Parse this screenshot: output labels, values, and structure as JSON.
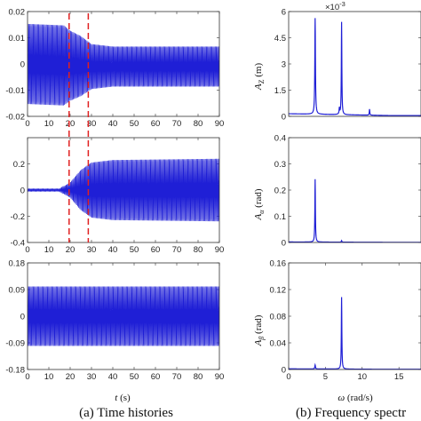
{
  "captions": {
    "left": "(a) Time histories",
    "right": "(b) Frequency spectr"
  },
  "colors": {
    "series": "#1f1fd6",
    "marker_lines": "#e02020",
    "axes": "#333333"
  },
  "chart_data": [
    {
      "type": "line",
      "panel": "time-top",
      "xlim": [
        0,
        90
      ],
      "ylim": [
        -0.02,
        0.02
      ],
      "x_ticks": [
        "0",
        "10",
        "20",
        "30",
        "40",
        "50",
        "60",
        "70",
        "80",
        "90"
      ],
      "y_ticks": [
        "0.02",
        "0.01",
        "0",
        "-0.01",
        "-0.02"
      ],
      "x_tick_values": [
        0,
        10,
        20,
        30,
        40,
        50,
        60,
        70,
        80,
        90
      ],
      "y_tick_values": [
        0.02,
        0.01,
        0,
        -0.01,
        -0.02
      ],
      "series": [
        {
          "oscillation": true,
          "envelope": [
            [
              0,
              0.016
            ],
            [
              17,
              0.016
            ],
            [
              20,
              0.014
            ],
            [
              25,
              0.012
            ],
            [
              30,
              0.009
            ],
            [
              40,
              0.008
            ],
            [
              90,
              0.008
            ]
          ],
          "offset": [
            [
              0,
              0.0
            ],
            [
              30,
              -0.001
            ],
            [
              90,
              -0.001
            ]
          ]
        }
      ],
      "vlines_x": [
        19.5,
        28.5
      ],
      "ylabel": "",
      "xlabel": ""
    },
    {
      "type": "line",
      "panel": "time-mid",
      "xlim": [
        0,
        90
      ],
      "ylim": [
        -0.4,
        0.4
      ],
      "x_ticks": [
        "0",
        "10",
        "20",
        "30",
        "40",
        "50",
        "60",
        "70",
        "80",
        "90"
      ],
      "y_ticks": [
        "0.2",
        "0",
        "-0.2",
        "-0.4"
      ],
      "x_tick_values": [
        0,
        10,
        20,
        30,
        40,
        50,
        60,
        70,
        80,
        90
      ],
      "y_tick_values": [
        0.2,
        0,
        -0.2,
        -0.4
      ],
      "series": [
        {
          "oscillation": true,
          "envelope": [
            [
              0,
              0.01
            ],
            [
              15,
              0.01
            ],
            [
              20,
              0.06
            ],
            [
              25,
              0.16
            ],
            [
              30,
              0.22
            ],
            [
              40,
              0.24
            ],
            [
              90,
              0.25
            ]
          ],
          "offset": [
            [
              0,
              0.0
            ],
            [
              90,
              0.0
            ]
          ]
        }
      ],
      "vlines_x": [
        19.5,
        28.5
      ],
      "ylabel": "",
      "xlabel": ""
    },
    {
      "type": "line",
      "panel": "time-bottom",
      "xlim": [
        0,
        90
      ],
      "ylim": [
        -0.18,
        0.18
      ],
      "x_ticks": [
        "0",
        "10",
        "20",
        "30",
        "40",
        "50",
        "60",
        "70",
        "80",
        "90"
      ],
      "y_ticks": [
        "0.18",
        "0.09",
        "0",
        "-0.09",
        "-0.18"
      ],
      "x_tick_values": [
        0,
        10,
        20,
        30,
        40,
        50,
        60,
        70,
        80,
        90
      ],
      "y_tick_values": [
        0.18,
        0.09,
        0,
        -0.09,
        -0.18
      ],
      "series": [
        {
          "oscillation": true,
          "envelope": [
            [
              0,
              0.105
            ],
            [
              90,
              0.105
            ]
          ],
          "offset": [
            [
              0,
              0.0
            ],
            [
              90,
              0.0
            ]
          ]
        }
      ],
      "xlabel": "t (s)"
    },
    {
      "type": "line",
      "panel": "freq-top",
      "xlim": [
        0,
        18
      ],
      "ylim": [
        0,
        6
      ],
      "x_ticks": [],
      "y_ticks": [
        "0",
        "1.5",
        "3",
        "4.5",
        "6"
      ],
      "y_tick_values": [
        0,
        1.5,
        3,
        4.5,
        6
      ],
      "y_exponent": "×10-3",
      "ylabel": "AZ (m)",
      "peaks": [
        {
          "x": 3.6,
          "y": 5.5,
          "w": 0.12
        },
        {
          "x": 7.2,
          "y": 5.3,
          "w": 0.1
        },
        {
          "x": 6.9,
          "y": 0.35,
          "w": 0.12
        },
        {
          "x": 11.0,
          "y": 0.35,
          "w": 0.1
        }
      ],
      "baseline": 0.15
    },
    {
      "type": "line",
      "panel": "freq-mid",
      "xlim": [
        0,
        18
      ],
      "ylim": [
        0,
        0.4
      ],
      "x_ticks": [],
      "y_ticks": [
        "0",
        "0.1",
        "0.2",
        "0.3",
        "0.4"
      ],
      "y_tick_values": [
        0,
        0.1,
        0.2,
        0.3,
        0.4
      ],
      "ylabel": "Aα (rad)",
      "peaks": [
        {
          "x": 3.6,
          "y": 0.24,
          "w": 0.1
        },
        {
          "x": 7.2,
          "y": 0.006,
          "w": 0.1
        }
      ],
      "baseline": 0.002
    },
    {
      "type": "line",
      "panel": "freq-bottom",
      "xlim": [
        0,
        18
      ],
      "ylim": [
        0,
        0.16
      ],
      "x_ticks": [
        "0",
        "5",
        "10",
        "15"
      ],
      "x_tick_values": [
        0,
        5,
        10,
        15
      ],
      "y_ticks": [
        "0",
        "0.04",
        "0.08",
        "0.12",
        "0.16"
      ],
      "y_tick_values": [
        0,
        0.04,
        0.08,
        0.12,
        0.16
      ],
      "ylabel": "Aβ (rad)",
      "xlabel": "ω (rad/s)",
      "peaks": [
        {
          "x": 7.2,
          "y": 0.108,
          "w": 0.1
        },
        {
          "x": 3.6,
          "y": 0.006,
          "w": 0.12
        }
      ],
      "baseline": 0.001
    }
  ]
}
